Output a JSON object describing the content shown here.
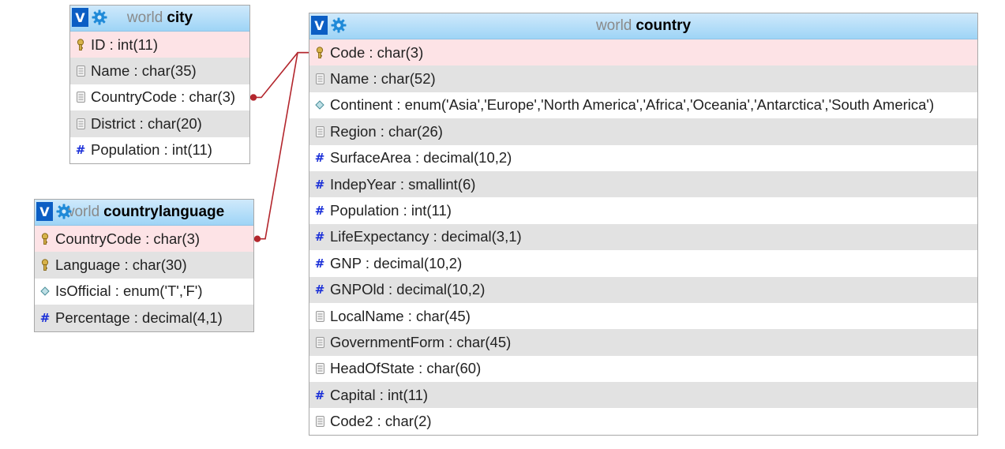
{
  "tables": [
    {
      "id": "city",
      "db": "world",
      "name": "city",
      "toggle_label": "V",
      "columns": [
        {
          "label": "ID : int(11)",
          "icon": "key-icon",
          "kind": "key"
        },
        {
          "label": "Name : char(35)",
          "icon": "text-field-icon",
          "kind": "text"
        },
        {
          "label": "CountryCode : char(3)",
          "icon": "text-field-icon",
          "kind": "text"
        },
        {
          "label": "District : char(20)",
          "icon": "text-field-icon",
          "kind": "text"
        },
        {
          "label": "Population : int(11)",
          "icon": "numeric-field-icon",
          "kind": "num"
        }
      ]
    },
    {
      "id": "countrylanguage",
      "db": "world",
      "name": "countrylanguage",
      "toggle_label": "V",
      "columns": [
        {
          "label": "CountryCode : char(3)",
          "icon": "key-icon",
          "kind": "key"
        },
        {
          "label": "Language : char(30)",
          "icon": "key-icon",
          "kind": "key"
        },
        {
          "label": "IsOfficial : enum('T','F')",
          "icon": "enum-field-icon",
          "kind": "enum"
        },
        {
          "label": "Percentage : decimal(4,1)",
          "icon": "numeric-field-icon",
          "kind": "num"
        }
      ]
    },
    {
      "id": "country",
      "db": "world",
      "name": "country",
      "toggle_label": "V",
      "columns": [
        {
          "label": "Code : char(3)",
          "icon": "key-icon",
          "kind": "key"
        },
        {
          "label": "Name : char(52)",
          "icon": "text-field-icon",
          "kind": "text"
        },
        {
          "label": "Continent : enum('Asia','Europe','North America','Africa','Oceania','Antarctica','South America')",
          "icon": "enum-field-icon",
          "kind": "enum"
        },
        {
          "label": "Region : char(26)",
          "icon": "text-field-icon",
          "kind": "text"
        },
        {
          "label": "SurfaceArea : decimal(10,2)",
          "icon": "numeric-field-icon",
          "kind": "num"
        },
        {
          "label": "IndepYear : smallint(6)",
          "icon": "numeric-field-icon",
          "kind": "num"
        },
        {
          "label": "Population : int(11)",
          "icon": "numeric-field-icon",
          "kind": "num"
        },
        {
          "label": "LifeExpectancy : decimal(3,1)",
          "icon": "numeric-field-icon",
          "kind": "num"
        },
        {
          "label": "GNP : decimal(10,2)",
          "icon": "numeric-field-icon",
          "kind": "num"
        },
        {
          "label": "GNPOld : decimal(10,2)",
          "icon": "numeric-field-icon",
          "kind": "num"
        },
        {
          "label": "LocalName : char(45)",
          "icon": "text-field-icon",
          "kind": "text"
        },
        {
          "label": "GovernmentForm : char(45)",
          "icon": "text-field-icon",
          "kind": "text"
        },
        {
          "label": "HeadOfState : char(60)",
          "icon": "text-field-icon",
          "kind": "text"
        },
        {
          "label": "Capital : int(11)",
          "icon": "numeric-field-icon",
          "kind": "num"
        },
        {
          "label": "Code2 : char(2)",
          "icon": "text-field-icon",
          "kind": "text"
        }
      ]
    }
  ],
  "relations": [
    {
      "from": "city.CountryCode",
      "to": "country.Code"
    },
    {
      "from": "countrylanguage.CountryCode",
      "to": "country.Code"
    }
  ],
  "colors": {
    "header_gradient_top": "#cfe9fb",
    "header_gradient_bottom": "#9ed4f6",
    "toggle_button": "#0b5ec4",
    "gear": "#1f8ad8",
    "primary_key_row": "#fde3e6",
    "alternate_row": "#e2e2e2",
    "relation_line": "#b3262d",
    "numeric_icon": "#1a2fd8"
  }
}
